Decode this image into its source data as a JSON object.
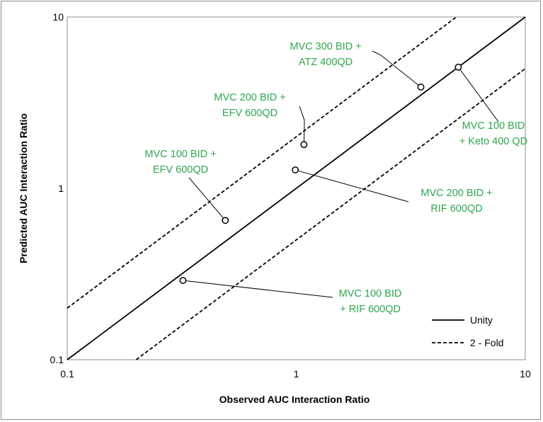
{
  "accent_color": "#2ea64d",
  "chart_data": {
    "type": "scatter",
    "title": "",
    "xlabel": "Observed AUC Interaction Ratio",
    "ylabel": "Predicted AUC Interaction Ratio",
    "xscale": "log",
    "yscale": "log",
    "xlim": [
      0.1,
      10
    ],
    "ylim": [
      0.1,
      10
    ],
    "x_ticks": [
      "0.1",
      "1",
      "10"
    ],
    "y_ticks": [
      "0.1",
      "1",
      "10"
    ],
    "grid": false,
    "legend_position": "bottom-right",
    "legend": [
      {
        "label": "Unity",
        "style": "solid"
      },
      {
        "label": "2 - Fold",
        "style": "dashed"
      }
    ],
    "points": [
      {
        "x": 0.32,
        "y": 0.29,
        "label": [
          "MVC 100 BID",
          "+ RIF 600QD"
        ]
      },
      {
        "x": 0.49,
        "y": 0.65,
        "label": [
          "MVC 100 BID +",
          "EFV 600QD"
        ]
      },
      {
        "x": 1.08,
        "y": 1.8,
        "label": [
          "MVC 200 BID +",
          "EFV 600QD"
        ]
      },
      {
        "x": 0.99,
        "y": 1.28,
        "label": [
          "MVC 200 BID +",
          "RIF 600QD"
        ]
      },
      {
        "x": 3.5,
        "y": 3.9,
        "label": [
          "MVC 300 BID +",
          "ATZ 400QD"
        ]
      },
      {
        "x": 5.1,
        "y": 5.1,
        "label": [
          "MVC 100 BID",
          "+ Keto 400 QD"
        ]
      }
    ]
  }
}
